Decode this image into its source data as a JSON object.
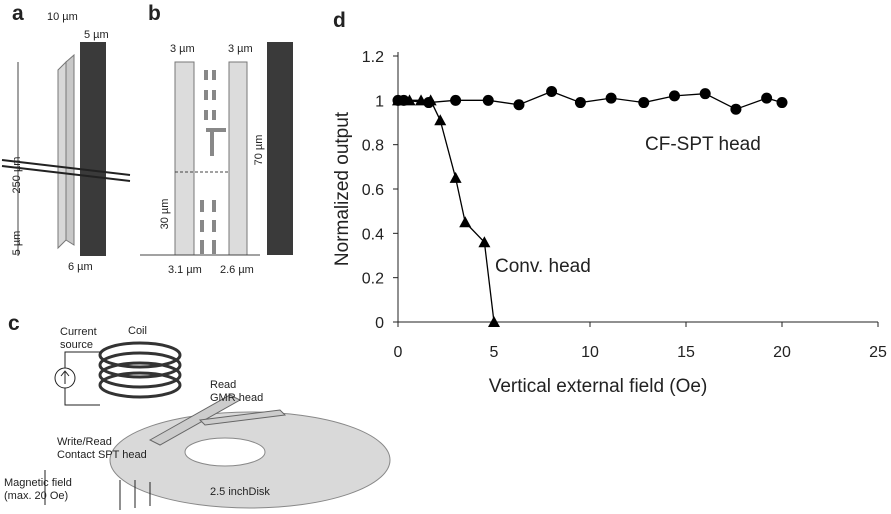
{
  "chart_data": {
    "type": "line",
    "panel": "d",
    "xlabel": "Vertical external field (Oe)",
    "ylabel": "Normalized output",
    "xlim": [
      0,
      25
    ],
    "ylim": [
      0,
      1.2
    ],
    "xticks": [
      0,
      5,
      10,
      15,
      20,
      25
    ],
    "yticks": [
      0,
      0.2,
      0.4,
      0.6,
      0.8,
      1,
      1.2
    ],
    "series": [
      {
        "name": "CF-SPT head",
        "color": "#000000",
        "marker": "circle",
        "x": [
          0,
          0.3,
          1.6,
          3,
          4.7,
          6.3,
          8,
          9.5,
          11.1,
          12.8,
          14.4,
          16,
          17.6,
          19.2,
          20
        ],
        "values": [
          1,
          1,
          0.99,
          1,
          1,
          0.98,
          1.04,
          0.99,
          1.01,
          0.99,
          1.02,
          1.03,
          0.96,
          1.01,
          0.99
        ]
      },
      {
        "name": "Conv. head",
        "color": "#000000",
        "marker": "triangle",
        "x": [
          0,
          0.6,
          1.2,
          1.7,
          2.2,
          3,
          3.5,
          4.5,
          5
        ],
        "values": [
          1,
          1,
          1,
          1,
          0.91,
          0.65,
          0.45,
          0.36,
          0
        ]
      }
    ]
  },
  "diagrams": {
    "a": {
      "label": "a",
      "dims": [
        "10 µm",
        "5 µm",
        "250 µm",
        "5 µm",
        "6 µm"
      ]
    },
    "b": {
      "label": "b",
      "dims": [
        "3 µm",
        "3 µm",
        "70 µm",
        "30 µm",
        "3.1 µm",
        "2.6 µm"
      ]
    },
    "c": {
      "label": "c",
      "texts": [
        "Current",
        "source",
        "Coil",
        "Read",
        "GMR head",
        "Write/Read",
        "Contact SPT head",
        "2.5 inchDisk",
        "Magnetic field",
        "(max. 20 Oe)"
      ]
    }
  }
}
